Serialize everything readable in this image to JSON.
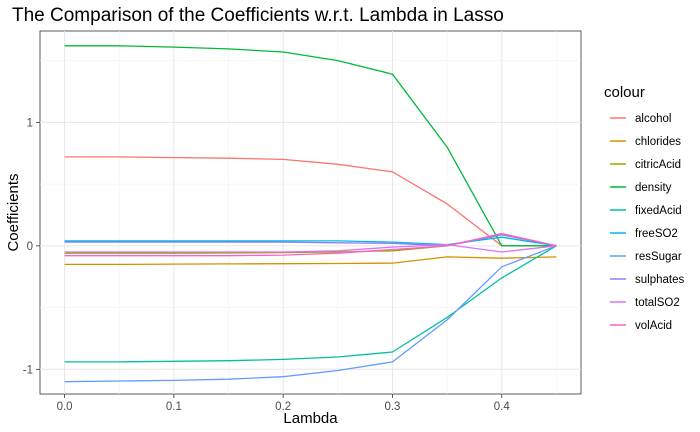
{
  "chart_data": {
    "type": "line",
    "title": "The Comparison of the Coefficients w.r.t. Lambda in Lasso",
    "xlabel": "Lambda",
    "ylabel": "Coefficients",
    "xlim": [
      -0.0225,
      0.4725
    ],
    "ylim": [
      -1.2,
      1.74
    ],
    "x_ticks": [
      0.0,
      0.1,
      0.2,
      0.3,
      0.4
    ],
    "x_tick_labels": [
      "0.0",
      "0.1",
      "0.2",
      "0.3",
      "0.4"
    ],
    "y_ticks": [
      -1,
      0,
      1
    ],
    "y_tick_labels": [
      "-1",
      "0",
      "1"
    ],
    "grid": true,
    "legend": {
      "title": "colour",
      "position": "right"
    },
    "x": [
      0.0,
      0.05,
      0.1,
      0.15,
      0.2,
      0.25,
      0.3,
      0.35,
      0.4,
      0.45
    ],
    "series": [
      {
        "name": "alcohol",
        "color": "#F8766D",
        "values": [
          0.72,
          0.72,
          0.715,
          0.71,
          0.7,
          0.66,
          0.6,
          0.34,
          0.0,
          0.0
        ]
      },
      {
        "name": "chlorides",
        "color": "#D39200",
        "values": [
          -0.15,
          -0.15,
          -0.148,
          -0.146,
          -0.145,
          -0.143,
          -0.14,
          -0.09,
          -0.1,
          -0.09
        ]
      },
      {
        "name": "citricAcid",
        "color": "#93AA00",
        "values": [
          -0.06,
          -0.06,
          -0.06,
          -0.058,
          -0.055,
          -0.05,
          -0.04,
          0.0,
          0.09,
          0.0
        ]
      },
      {
        "name": "density",
        "color": "#00BA38",
        "values": [
          1.62,
          1.62,
          1.61,
          1.595,
          1.57,
          1.5,
          1.39,
          0.8,
          0.0,
          0.0
        ]
      },
      {
        "name": "fixedAcid",
        "color": "#00C19F",
        "values": [
          -0.94,
          -0.94,
          -0.935,
          -0.93,
          -0.92,
          -0.9,
          -0.86,
          -0.58,
          -0.26,
          0.0
        ]
      },
      {
        "name": "freeSO2",
        "color": "#00B9E3",
        "values": [
          0.04,
          0.04,
          0.04,
          0.04,
          0.04,
          0.04,
          0.03,
          0.01,
          0.07,
          0.0
        ]
      },
      {
        "name": "resSugar",
        "color": "#619CFF",
        "values": [
          -1.1,
          -1.095,
          -1.09,
          -1.08,
          -1.06,
          -1.01,
          -0.94,
          -0.6,
          -0.17,
          0.0
        ]
      },
      {
        "name": "sulphates",
        "color": "#8F7FF7",
        "values": [
          0.03,
          0.03,
          0.03,
          0.03,
          0.03,
          0.025,
          0.02,
          0.0,
          0.09,
          0.0
        ]
      },
      {
        "name": "totalSO2",
        "color": "#DB72FB",
        "values": [
          -0.05,
          -0.05,
          -0.05,
          -0.05,
          -0.05,
          -0.04,
          -0.01,
          0.01,
          -0.05,
          0.0
        ]
      },
      {
        "name": "volAcid",
        "color": "#FF61C3",
        "values": [
          -0.08,
          -0.08,
          -0.08,
          -0.08,
          -0.075,
          -0.06,
          -0.03,
          0.0,
          0.1,
          0.0
        ]
      }
    ]
  }
}
